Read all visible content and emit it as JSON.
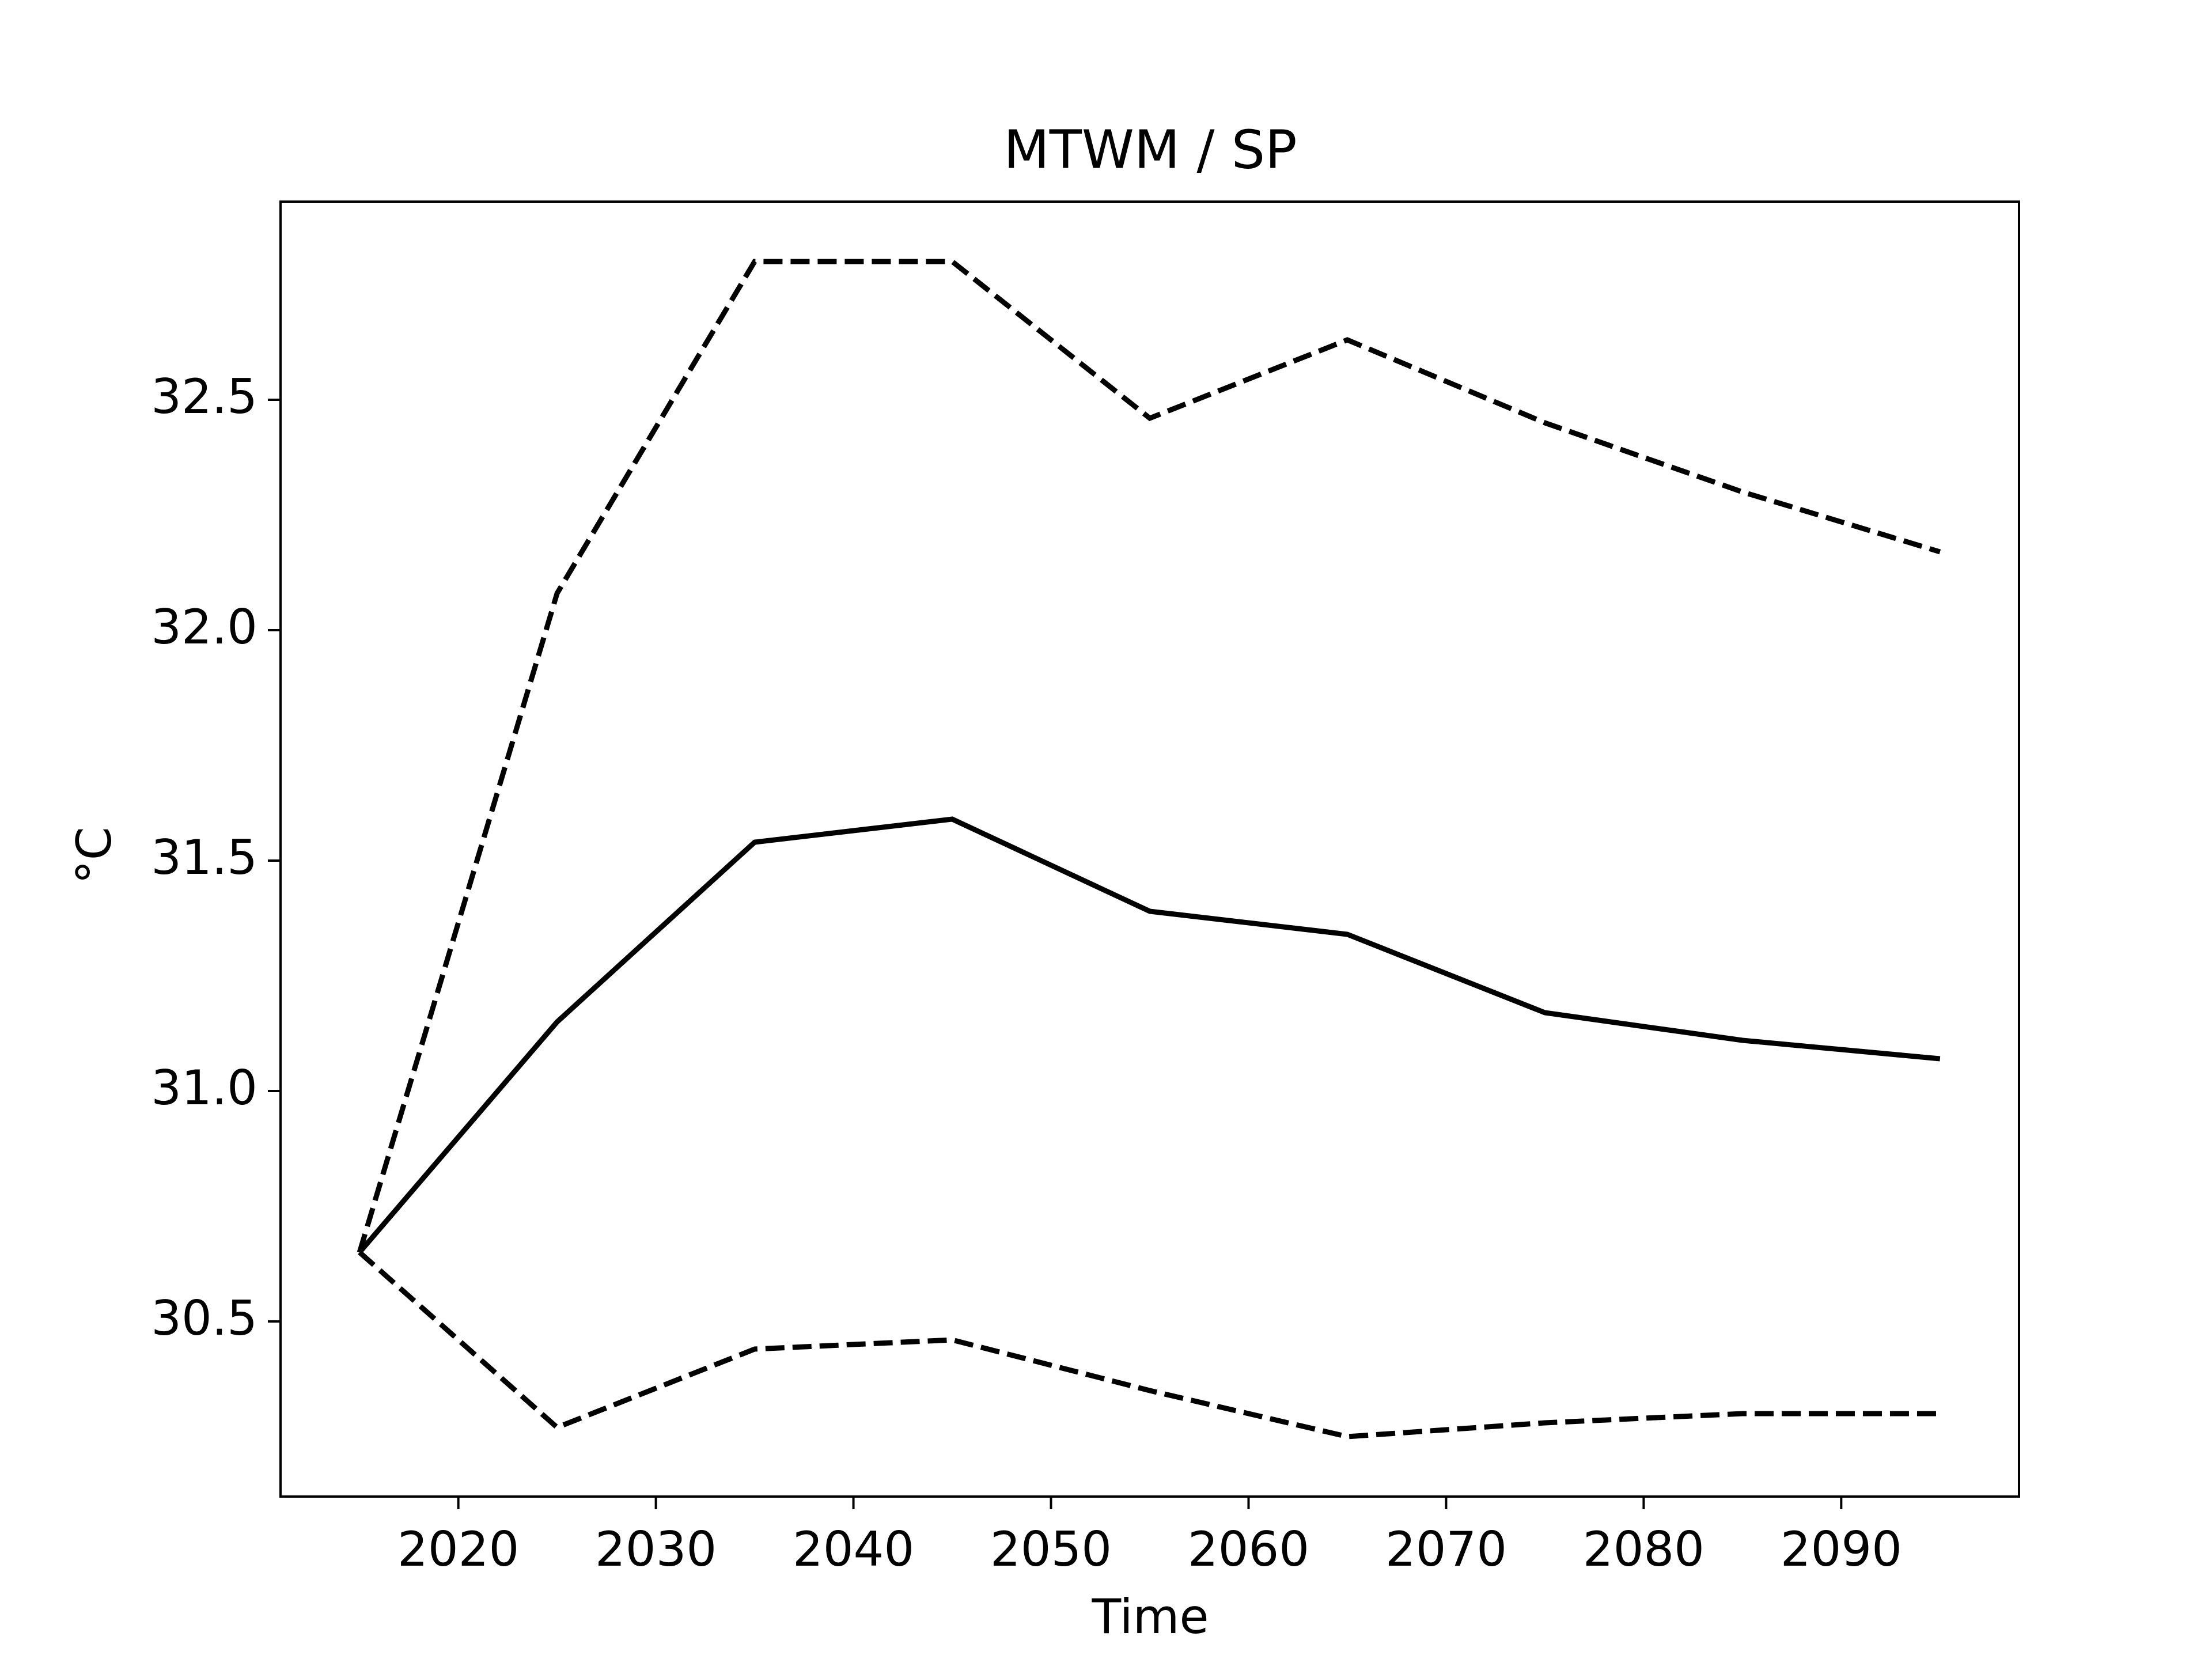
{
  "chart_data": {
    "type": "line",
    "title": "MTWM / SP",
    "x_label": "Time",
    "y_label": "°C",
    "x": [
      2015,
      2025,
      2035,
      2045,
      2055,
      2065,
      2075,
      2085,
      2095
    ],
    "series": [
      {
        "color": "#000000",
        "linestyle": "dashed",
        "values": [
          30.65,
          32.08,
          32.8,
          32.8,
          32.46,
          32.63,
          32.45,
          32.3,
          32.17
        ]
      },
      {
        "color": "#000000",
        "linestyle": "solid",
        "values": [
          30.65,
          31.15,
          31.54,
          31.59,
          31.39,
          31.34,
          31.17,
          31.11,
          31.07
        ]
      },
      {
        "color": "#000000",
        "linestyle": "dashed",
        "values": [
          30.65,
          30.27,
          30.44,
          30.46,
          30.35,
          30.25,
          30.28,
          30.3,
          30.3
        ]
      }
    ],
    "xlim": [
      2011,
      2099
    ],
    "xticks": [
      2020,
      2030,
      2040,
      2050,
      2060,
      2070,
      2080,
      2090
    ],
    "ylim": [
      30.12,
      32.93
    ],
    "yticks": [
      {
        "value": 30.5,
        "label": "30.5"
      },
      {
        "value": 31,
        "label": "31.0"
      },
      {
        "value": 31.5,
        "label": "31.5"
      },
      {
        "value": 32,
        "label": "32.0"
      },
      {
        "value": 32.5,
        "label": "32.5"
      }
    ],
    "grid": false
  }
}
